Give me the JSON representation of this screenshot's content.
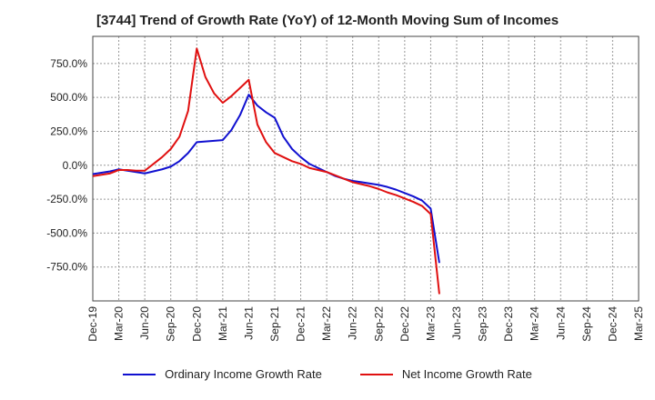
{
  "chart_data": {
    "type": "line",
    "title": "[3744]  Trend of Growth Rate (YoY) of 12-Month Moving Sum of Incomes",
    "xlabel": "",
    "ylabel": "",
    "x_tick_labels": [
      "Dec-19",
      "Mar-20",
      "Jun-20",
      "Sep-20",
      "Dec-20",
      "Mar-21",
      "Jun-21",
      "Sep-21",
      "Dec-21",
      "Mar-22",
      "Jun-22",
      "Sep-22",
      "Dec-22",
      "Mar-23",
      "Jun-23",
      "Sep-23",
      "Dec-23",
      "Mar-24",
      "Jun-24",
      "Sep-24",
      "Dec-24",
      "Mar-25"
    ],
    "y_tick_labels": [
      "750.0%",
      "500.0%",
      "250.0%",
      "0.0%",
      "-250.0%",
      "-500.0%",
      "-750.0%"
    ],
    "y_ticks": [
      750,
      500,
      250,
      0,
      -250,
      -500,
      -750
    ],
    "ylim": [
      -1000,
      950
    ],
    "x_months": [
      "2019-12",
      "2020-01",
      "2020-02",
      "2020-03",
      "2020-04",
      "2020-05",
      "2020-06",
      "2020-07",
      "2020-08",
      "2020-09",
      "2020-10",
      "2020-11",
      "2020-12",
      "2021-01",
      "2021-02",
      "2021-03",
      "2021-04",
      "2021-05",
      "2021-06",
      "2021-07",
      "2021-08",
      "2021-09",
      "2021-10",
      "2021-11",
      "2021-12",
      "2022-01",
      "2022-02",
      "2022-03",
      "2022-04",
      "2022-05",
      "2022-06",
      "2022-07",
      "2022-08",
      "2022-09",
      "2022-10",
      "2022-11",
      "2022-12",
      "2023-01",
      "2023-02",
      "2023-03",
      "2023-04"
    ],
    "grid": true,
    "legend_position": "bottom",
    "series": [
      {
        "name": "Ordinary Income Growth Rate",
        "color": "#1010d0",
        "values": [
          -65,
          -55,
          -45,
          -30,
          -40,
          -50,
          -60,
          -45,
          -30,
          -10,
          30,
          90,
          170,
          175,
          180,
          185,
          260,
          370,
          520,
          440,
          390,
          350,
          210,
          120,
          60,
          10,
          -20,
          -50,
          -80,
          -100,
          -115,
          -125,
          -135,
          -145,
          -160,
          -180,
          -205,
          -230,
          -260,
          -320,
          -720
        ]
      },
      {
        "name": "Net Income Growth Rate",
        "color": "#e01010",
        "values": [
          -80,
          -70,
          -60,
          -35,
          -35,
          -40,
          -40,
          10,
          60,
          120,
          210,
          400,
          860,
          650,
          530,
          460,
          510,
          570,
          630,
          300,
          170,
          90,
          60,
          30,
          10,
          -20,
          -35,
          -50,
          -75,
          -100,
          -125,
          -140,
          -155,
          -175,
          -200,
          -220,
          -245,
          -270,
          -300,
          -360,
          -950
        ]
      }
    ]
  }
}
